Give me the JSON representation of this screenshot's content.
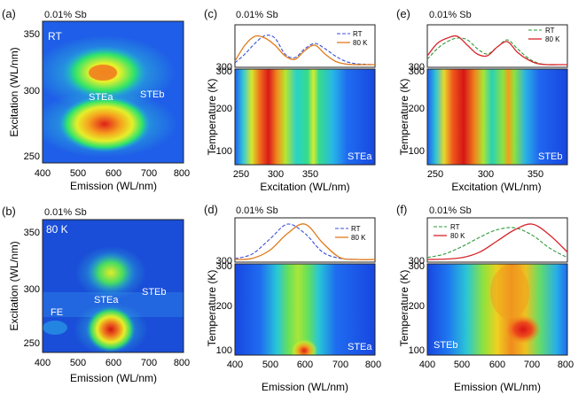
{
  "figure": {
    "panels": [
      {
        "id": "a",
        "label": "(a)",
        "title": "0.01% Sb",
        "tag": "RT",
        "xlabel": "Emission (WL/nm)",
        "ylabel": "Excitation (WL/nm)",
        "annotations": [
          "STEa",
          "STEb"
        ],
        "xticks": [
          "400",
          "500",
          "600",
          "700",
          "800"
        ],
        "yticks": [
          "250",
          "300",
          "350"
        ]
      },
      {
        "id": "b",
        "label": "(b)",
        "title": "0.01% Sb",
        "tag": "80 K",
        "xlabel": "Emission (WL/nm)",
        "ylabel": "Excitation (WL/nm)",
        "annotations": [
          "FE",
          "STEa",
          "STEb"
        ],
        "xticks": [
          "400",
          "500",
          "600",
          "700",
          "800"
        ],
        "yticks": [
          "250",
          "300",
          "350"
        ]
      },
      {
        "id": "c",
        "label": "(c)",
        "title": "0.01% Sb",
        "xlabel": "Excitation (WL/nm)",
        "ylabel": "Temperature (K)",
        "corner": "STEa",
        "legend": [
          "RT",
          "80 K"
        ],
        "xticks": [
          "250",
          "300",
          "350"
        ],
        "yticks": [
          "100",
          "200",
          "300"
        ],
        "topticks": [
          "300"
        ]
      },
      {
        "id": "d",
        "label": "(d)",
        "title": "0.01% Sb",
        "xlabel": "Emission (WL/nm)",
        "ylabel": "Temperature (K)",
        "corner": "STEa",
        "legend": [
          "RT",
          "80 K"
        ],
        "xticks": [
          "400",
          "500",
          "600",
          "700",
          "800"
        ],
        "yticks": [
          "100",
          "200",
          "300"
        ],
        "topticks": [
          "300"
        ]
      },
      {
        "id": "e",
        "label": "(e)",
        "title": "0.01% Sb",
        "xlabel": "Excitation (WL/nm)",
        "ylabel": "Temperature (K)",
        "corner": "STEb",
        "legend": [
          "RT",
          "80 K"
        ],
        "xticks": [
          "250",
          "300",
          "350"
        ],
        "yticks": [
          "100",
          "200",
          "300"
        ],
        "topticks": [
          "300"
        ]
      },
      {
        "id": "f",
        "label": "(f)",
        "title": "0.01% Sb",
        "xlabel": "Emission (WL/nm)",
        "ylabel": "Temperature (K)",
        "corner": "STEb",
        "legend": [
          "RT",
          "80 K"
        ],
        "xticks": [
          "400",
          "500",
          "600",
          "700",
          "800"
        ],
        "yticks": [
          "100",
          "200",
          "300"
        ],
        "topticks": [
          "300"
        ]
      }
    ]
  },
  "colors": {
    "rt_blue": "#3b4fd6",
    "k80_orange": "#e07a1c",
    "rt_green": "#2e9a3a",
    "k80_red": "#d8242a"
  },
  "chart_data": [
    {
      "type": "heatmap",
      "panel": "a",
      "x_range": [
        400,
        800
      ],
      "y_range": [
        240,
        360
      ],
      "peaks": [
        {
          "name": "STEa",
          "emission": 560,
          "excitation": 320
        },
        {
          "name": "STEa",
          "emission": 560,
          "excitation": 272
        }
      ]
    },
    {
      "type": "heatmap",
      "panel": "b",
      "x_range": [
        400,
        800
      ],
      "y_range": [
        240,
        360
      ],
      "peaks": [
        {
          "name": "STEa",
          "emission": 585,
          "excitation": 315
        },
        {
          "name": "STEa",
          "emission": 585,
          "excitation": 262
        }
      ]
    },
    {
      "type": "line",
      "panel": "c-top",
      "x_range": [
        240,
        380
      ],
      "series": [
        {
          "name": "RT",
          "x": [
            240,
            250,
            260,
            270,
            280,
            290,
            300,
            310,
            320,
            330,
            340,
            350,
            360,
            370,
            380
          ],
          "y": [
            0.05,
            0.3,
            0.6,
            0.82,
            0.75,
            0.3,
            0.2,
            0.45,
            0.6,
            0.45,
            0.25,
            0.1,
            0.03,
            0.01,
            0.0
          ]
        },
        {
          "name": "80 K",
          "x": [
            240,
            250,
            260,
            270,
            280,
            290,
            300,
            310,
            320,
            330,
            340,
            350,
            360,
            370,
            380
          ],
          "y": [
            0.1,
            0.55,
            0.8,
            0.75,
            0.55,
            0.25,
            0.15,
            0.4,
            0.55,
            0.3,
            0.1,
            0.02,
            0.0,
            0.0,
            0.0
          ]
        }
      ]
    },
    {
      "type": "heatmap",
      "panel": "c",
      "x_range": [
        240,
        380
      ],
      "y_range": [
        80,
        300
      ],
      "bands_nm": [
        270,
        318
      ]
    },
    {
      "type": "line",
      "panel": "d-top",
      "x_range": [
        400,
        800
      ],
      "series": [
        {
          "name": "RT",
          "x": [
            400,
            450,
            500,
            550,
            600,
            650,
            700,
            750,
            800
          ],
          "y": [
            0.02,
            0.15,
            0.55,
            0.95,
            0.7,
            0.2,
            0.03,
            0.0,
            0.0
          ]
        },
        {
          "name": "80 K",
          "x": [
            400,
            450,
            500,
            550,
            600,
            650,
            700,
            750,
            800
          ],
          "y": [
            0.0,
            0.03,
            0.25,
            0.7,
            0.95,
            0.45,
            0.05,
            0.0,
            0.0
          ]
        }
      ]
    },
    {
      "type": "heatmap",
      "panel": "d",
      "x_range": [
        400,
        800
      ],
      "y_range": [
        80,
        300
      ],
      "peak_nm": 575
    },
    {
      "type": "line",
      "panel": "e-top",
      "x_range": [
        240,
        380
      ],
      "series": [
        {
          "name": "RT",
          "x": [
            240,
            250,
            260,
            270,
            280,
            290,
            300,
            310,
            320,
            330,
            340,
            350,
            360,
            370,
            380
          ],
          "y": [
            0.15,
            0.45,
            0.65,
            0.75,
            0.7,
            0.45,
            0.3,
            0.5,
            0.7,
            0.45,
            0.2,
            0.05,
            0.0,
            0.0,
            0.0
          ]
        },
        {
          "name": "80 K",
          "x": [
            240,
            250,
            260,
            270,
            280,
            290,
            300,
            310,
            320,
            330,
            340,
            350,
            360,
            370,
            380
          ],
          "y": [
            0.25,
            0.6,
            0.75,
            0.8,
            0.55,
            0.3,
            0.25,
            0.5,
            0.65,
            0.35,
            0.15,
            0.03,
            0.0,
            0.0,
            0.0
          ]
        }
      ]
    },
    {
      "type": "heatmap",
      "panel": "e",
      "x_range": [
        240,
        380
      ],
      "y_range": [
        80,
        300
      ],
      "bands_nm": [
        272,
        320
      ]
    },
    {
      "type": "line",
      "panel": "f-top",
      "x_range": [
        400,
        800
      ],
      "series": [
        {
          "name": "RT",
          "x": [
            400,
            450,
            500,
            550,
            600,
            650,
            700,
            750,
            800
          ],
          "y": [
            0.05,
            0.15,
            0.35,
            0.6,
            0.8,
            0.85,
            0.65,
            0.3,
            0.05
          ]
        },
        {
          "name": "80 K",
          "x": [
            400,
            450,
            500,
            550,
            600,
            650,
            700,
            750,
            800
          ],
          "y": [
            0.0,
            0.01,
            0.05,
            0.2,
            0.5,
            0.8,
            0.95,
            0.65,
            0.2
          ]
        }
      ]
    },
    {
      "type": "heatmap",
      "panel": "f",
      "x_range": [
        400,
        800
      ],
      "y_range": [
        80,
        300
      ],
      "peak_nm": 690
    }
  ]
}
